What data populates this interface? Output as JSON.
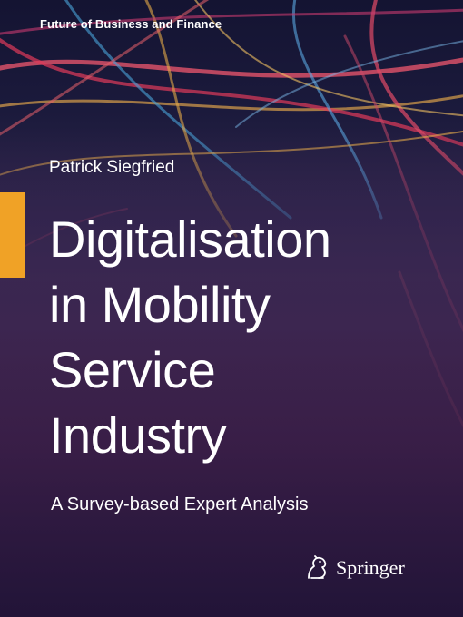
{
  "cover": {
    "series": "Future of Business and Finance",
    "author": "Patrick Siegfried",
    "title_lines": [
      "Digitalisation",
      "in Mobility",
      "Service",
      "Industry"
    ],
    "subtitle": "A Survey-based Expert Analysis",
    "publisher": "Springer",
    "publisher_logo_icon": "springer-horse-icon",
    "colors": {
      "accent": "#f0a226",
      "text": "#ffffff",
      "background_top": "#141432",
      "background_bottom": "#201536"
    }
  }
}
